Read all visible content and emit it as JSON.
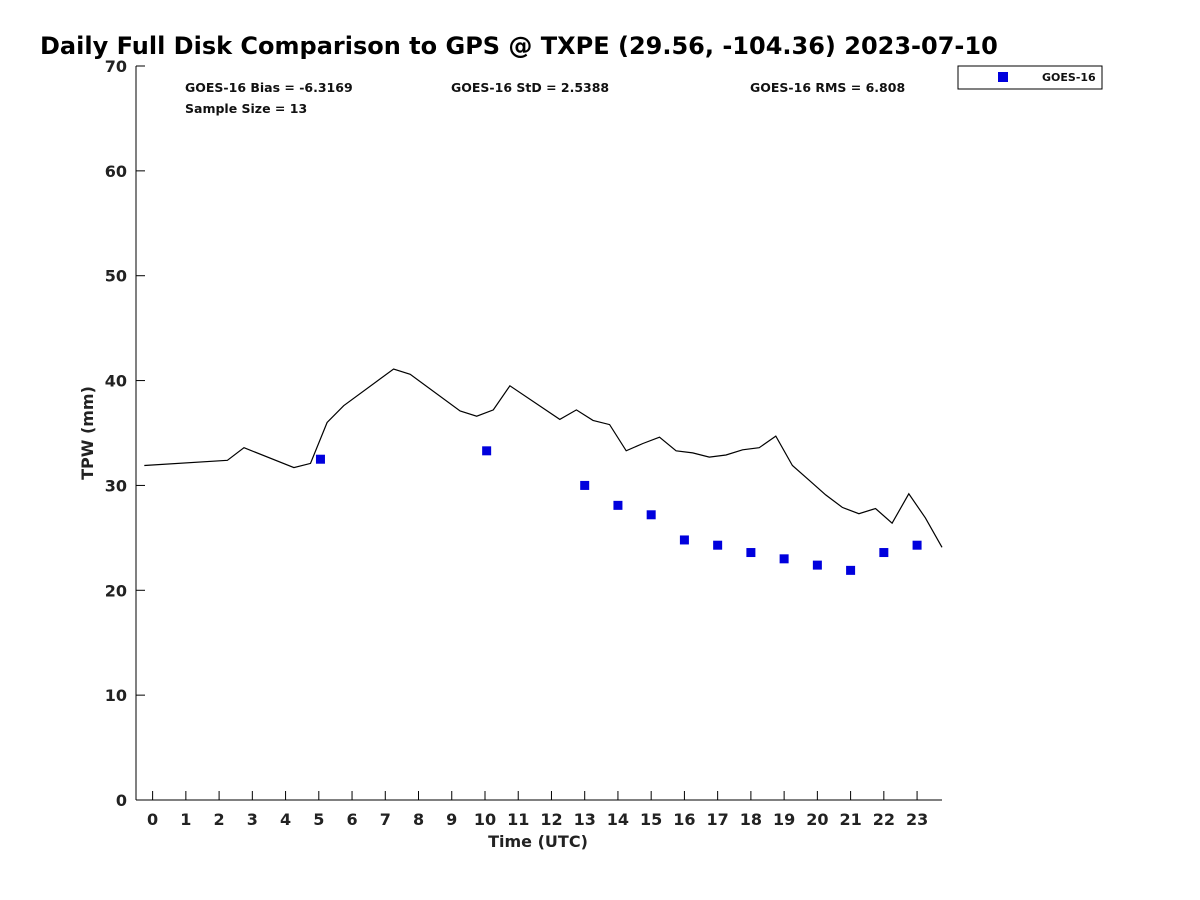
{
  "chart_data": {
    "type": "scatter",
    "title": "Daily Full Disk Comparison to GPS @ TXPE (29.56, -104.36) 2023-07-10",
    "xlabel": "Time (UTC)",
    "ylabel": "TPW (mm)",
    "xlim": [
      -0.5,
      23.75
    ],
    "ylim": [
      0,
      70
    ],
    "x_ticks": [
      0,
      1,
      2,
      3,
      4,
      5,
      6,
      7,
      8,
      9,
      10,
      11,
      12,
      13,
      14,
      15,
      16,
      17,
      18,
      19,
      20,
      21,
      22,
      23
    ],
    "y_ticks": [
      0,
      10,
      20,
      30,
      40,
      50,
      60,
      70
    ],
    "grid": false,
    "legend_position": "top-right",
    "stats": {
      "bias": "GOES-16 Bias = -6.3169",
      "std": "GOES-16 StD = 2.5388",
      "rms": "GOES-16 RMS = 6.808",
      "sample": "Sample Size = 13"
    },
    "series": [
      {
        "name": "GPS",
        "kind": "line",
        "color": "#000000",
        "x": [
          -0.25,
          2.25,
          2.75,
          4.25,
          4.75,
          5.25,
          5.75,
          7.25,
          7.75,
          9.25,
          9.75,
          10.25,
          10.75,
          12.25,
          12.75,
          13.25,
          13.75,
          14.25,
          14.75,
          15.25,
          15.75,
          16.25,
          16.75,
          17.25,
          17.75,
          18.25,
          18.75,
          19.25,
          19.75,
          20.25,
          20.75,
          21.25,
          21.75,
          22.25,
          22.75,
          23.25,
          23.75
        ],
        "y": [
          31.9,
          32.4,
          33.6,
          31.7,
          32.1,
          36.0,
          37.6,
          41.1,
          40.6,
          37.1,
          36.6,
          37.2,
          39.5,
          36.3,
          37.2,
          36.2,
          35.8,
          33.3,
          34.0,
          34.6,
          33.3,
          33.1,
          32.7,
          32.9,
          33.4,
          33.6,
          34.7,
          31.9,
          30.5,
          29.1,
          27.9,
          27.3,
          27.8,
          26.4,
          29.2,
          26.9,
          24.1
        ]
      },
      {
        "name": "GOES-16",
        "kind": "scatter",
        "color": "#0000dd",
        "x": [
          5.05,
          10.05,
          13.0,
          14.0,
          15.0,
          16.0,
          17.0,
          18.0,
          19.0,
          20.0,
          21.0,
          22.0,
          23.0
        ],
        "y": [
          32.5,
          33.3,
          30.0,
          28.1,
          27.2,
          24.8,
          24.3,
          23.6,
          23.0,
          22.4,
          21.9,
          23.6,
          24.3
        ]
      }
    ],
    "legend": [
      {
        "label": "GOES-16",
        "color": "#0000dd"
      }
    ]
  }
}
